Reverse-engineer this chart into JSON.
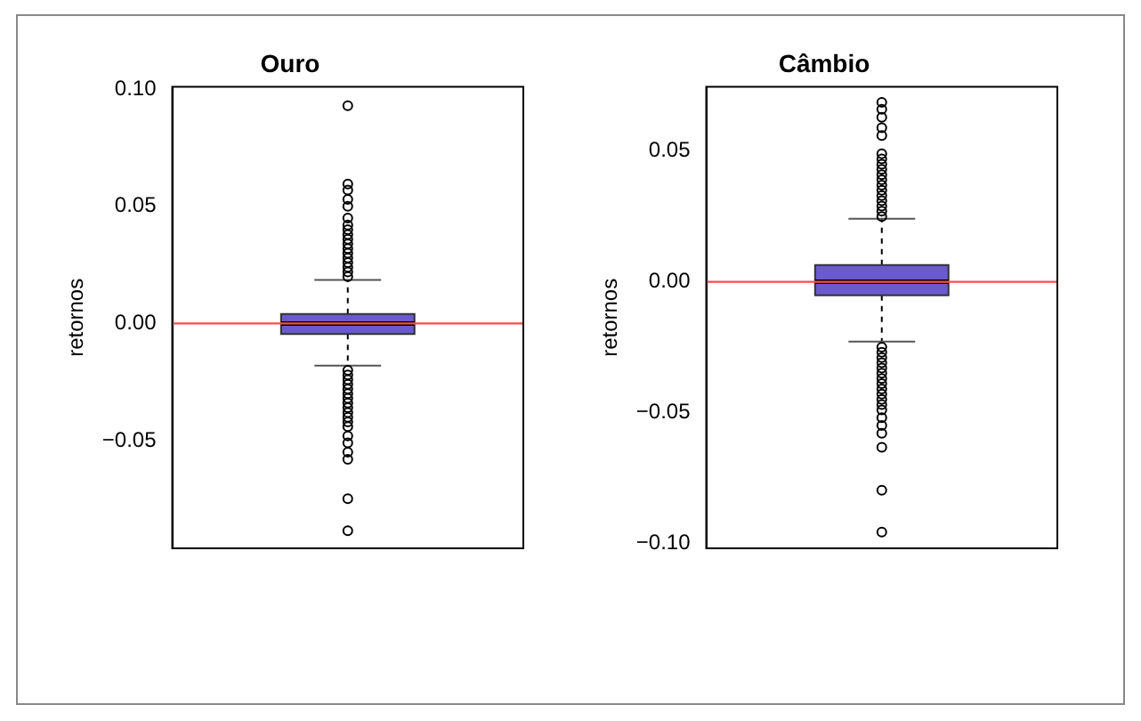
{
  "chart_data": [
    {
      "type": "box",
      "title": "Ouro",
      "ylabel": "retornos",
      "categories": [
        null
      ],
      "color": "#6a5acd",
      "boxes": [
        {
          "low": -0.018,
          "q1": -0.0045,
          "median": 0.0,
          "q3": 0.004,
          "high": 0.0186,
          "outliers": [
            0.093,
            0.0595,
            0.057,
            0.053,
            0.05,
            0.045,
            0.042,
            0.04,
            0.038,
            0.036,
            0.034,
            0.032,
            0.03,
            0.028,
            0.026,
            0.024,
            0.022,
            0.02,
            -0.02,
            -0.022,
            -0.024,
            -0.026,
            -0.028,
            -0.03,
            -0.032,
            -0.034,
            -0.036,
            -0.038,
            -0.04,
            -0.042,
            -0.044,
            -0.048,
            -0.051,
            -0.055,
            -0.058,
            -0.0748,
            -0.0885
          ]
        }
      ],
      "ylim": [
        -0.096,
        0.101
      ],
      "yticks": [
        {
          "value": -0.05,
          "label": "−0.05"
        },
        {
          "value": 0,
          "label": "0.00"
        },
        {
          "value": 0.05,
          "label": "0.05"
        },
        {
          "value": 0.1,
          "label": "0.10"
        }
      ],
      "ref_lines": [
        {
          "axis": "y",
          "value": 0,
          "color": "#ff4d4d"
        }
      ],
      "tick_labels": "y",
      "grid": false,
      "legend": false
    },
    {
      "type": "box",
      "title": "Câmbio",
      "ylabel": "retornos",
      "categories": [
        null
      ],
      "color": "#6a5acd",
      "boxes": [
        {
          "low": -0.0229,
          "q1": -0.0052,
          "median": 0.0,
          "q3": 0.0064,
          "high": 0.0241,
          "outliers": [
            0.0687,
            0.066,
            0.063,
            0.059,
            0.056,
            0.049,
            0.047,
            0.045,
            0.043,
            0.041,
            0.039,
            0.037,
            0.035,
            0.033,
            0.031,
            0.029,
            0.027,
            0.025,
            -0.025,
            -0.027,
            -0.029,
            -0.031,
            -0.033,
            -0.035,
            -0.037,
            -0.039,
            -0.041,
            -0.043,
            -0.045,
            -0.047,
            -0.049,
            -0.052,
            -0.055,
            -0.058,
            -0.0633,
            -0.0798,
            -0.0958
          ]
        }
      ],
      "ylim": [
        -0.102,
        0.0746
      ],
      "yticks": [
        {
          "value": -0.1,
          "label": "−0.10"
        },
        {
          "value": -0.05,
          "label": "−0.05"
        },
        {
          "value": 0,
          "label": "0.00"
        },
        {
          "value": 0.05,
          "label": "0.05"
        }
      ],
      "ref_lines": [
        {
          "axis": "y",
          "value": 0,
          "color": "#ff4d4d"
        }
      ],
      "tick_labels": "y",
      "grid": false,
      "legend": false
    }
  ]
}
